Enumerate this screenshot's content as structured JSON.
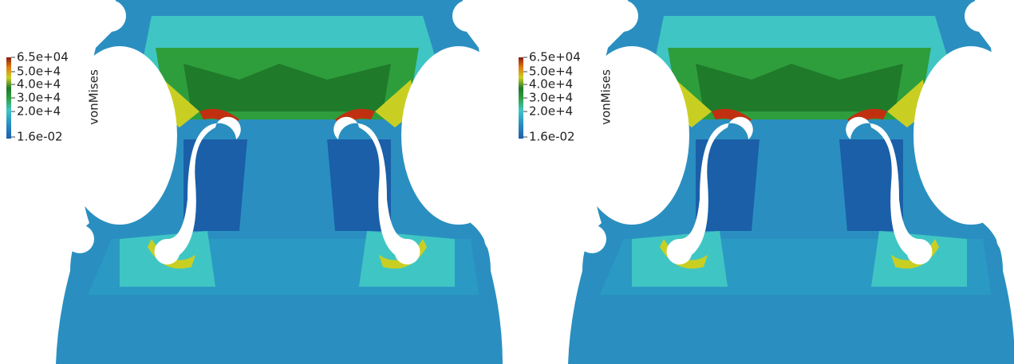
{
  "panels": [
    {
      "colorbar": {
        "title": "vonMises",
        "labels": [
          "6.5e+04",
          "5.0e+4",
          "4.0e+4",
          "3.0e+4",
          "2.0e+4",
          "1.6e-02"
        ]
      }
    },
    {
      "colorbar": {
        "title": "vonMises",
        "labels": [
          "6.5e+04",
          "5.0e+4",
          "4.0e+4",
          "3.0e+4",
          "2.0e+4",
          "1.6e-02"
        ]
      }
    }
  ]
}
